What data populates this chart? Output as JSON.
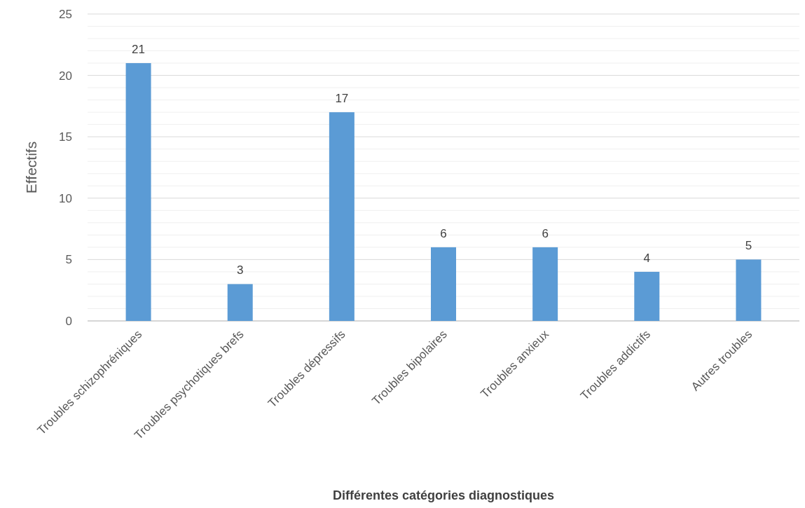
{
  "chart_data": {
    "type": "bar",
    "xlabel": "Différentes catégories diagnostiques",
    "ylabel": "Effectifs",
    "categories": [
      "Troubles schizophréniques",
      "Troubles psychotiques brefs",
      "Troubles dépressifs",
      "Troubles bipolaires",
      "Troubles anxieux",
      "Troubles addictifs",
      "Autres troubles"
    ],
    "values": [
      21,
      3,
      17,
      6,
      6,
      4,
      5
    ],
    "color": "#5b9bd5",
    "ylim": [
      0,
      25
    ],
    "yticks": [
      0,
      {
        "value": 1,
        "label": null
      },
      {
        "value": 2,
        "label": null
      },
      {
        "value": 3,
        "label": null
      },
      {
        "value": 4,
        "label": null
      },
      5,
      {
        "value": 6,
        "label": null
      },
      {
        "value": 7,
        "label": null
      },
      {
        "value": 8,
        "label": null
      },
      {
        "value": 9,
        "label": null
      },
      10,
      {
        "value": 11,
        "label": null
      },
      {
        "value": 12,
        "label": null
      },
      {
        "value": 13,
        "label": null
      },
      {
        "value": 14,
        "label": null
      },
      15,
      {
        "value": 16,
        "label": null
      },
      {
        "value": 17,
        "label": null
      },
      {
        "value": 18,
        "label": null
      },
      {
        "value": 19,
        "label": null
      },
      20,
      {
        "value": 21,
        "label": null
      },
      {
        "value": 22,
        "label": null
      },
      {
        "value": 23,
        "label": null
      },
      {
        "value": 24,
        "label": null
      },
      25
    ],
    "grid": true,
    "data_labels": true
  }
}
